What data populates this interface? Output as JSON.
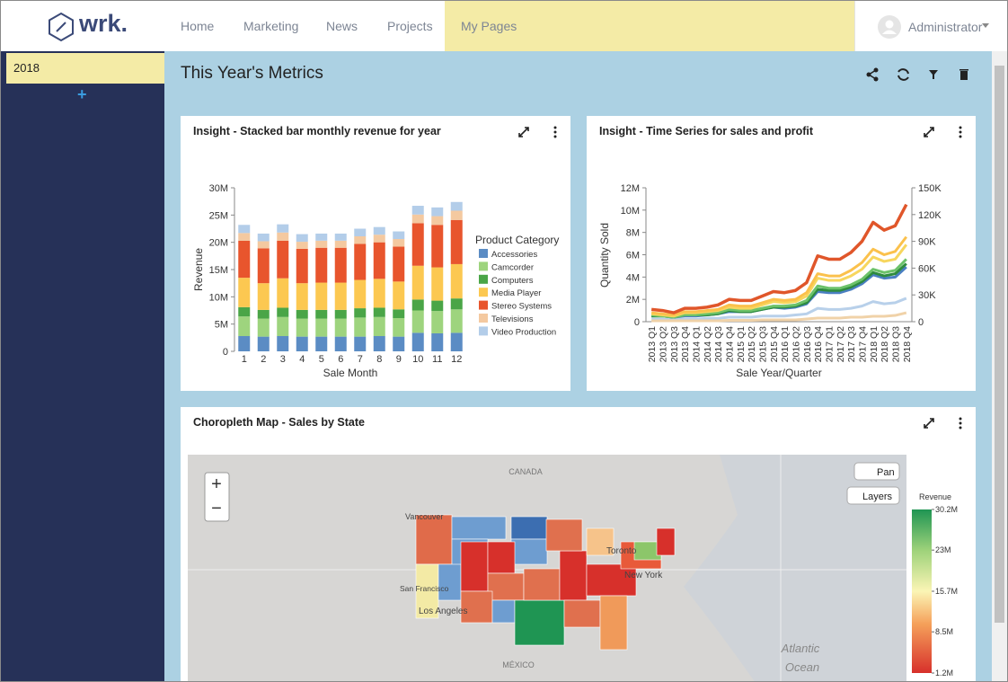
{
  "header": {
    "logo": "wrk.",
    "nav": [
      "Home",
      "Marketing",
      "News",
      "Projects",
      "My Pages"
    ],
    "active": 4,
    "user": "Administrator"
  },
  "sidebar": {
    "items": [
      "2018"
    ],
    "add": "+"
  },
  "page": {
    "title": "This Year's Metrics"
  },
  "chart_data": [
    {
      "type": "bar",
      "stacked": true,
      "title": "Insight - Stacked bar monthly revenue for year",
      "xlabel": "Sale Month",
      "ylabel": "Revenue",
      "legend_title": "Product Category",
      "legend": "right",
      "grid": false,
      "categories": [
        "1",
        "2",
        "3",
        "4",
        "5",
        "6",
        "7",
        "8",
        "9",
        "10",
        "11",
        "12"
      ],
      "ylim": [
        0,
        30000000
      ],
      "yticks": [
        0,
        {
          "value": 5000000,
          "label": "5M"
        },
        {
          "value": 10000000,
          "label": "10M"
        },
        {
          "value": 15000000,
          "label": "15M"
        },
        {
          "value": 20000000,
          "label": "20M"
        },
        {
          "value": 25000000,
          "label": "25M"
        },
        {
          "value": 30000000,
          "label": "30M"
        }
      ],
      "series": [
        {
          "name": "Accessories",
          "color": "#5b8cc4",
          "values": [
            2800000,
            2700000,
            2800000,
            2700000,
            2700000,
            2700000,
            2700000,
            2800000,
            2700000,
            3400000,
            3300000,
            3400000
          ]
        },
        {
          "name": "Camcorder",
          "color": "#9ed47e",
          "values": [
            3600000,
            3300000,
            3500000,
            3300000,
            3300000,
            3300000,
            3500000,
            3500000,
            3400000,
            4100000,
            4100000,
            4300000
          ]
        },
        {
          "name": "Computers",
          "color": "#4aa547",
          "values": [
            1700000,
            1600000,
            1700000,
            1600000,
            1600000,
            1600000,
            1700000,
            1700000,
            1600000,
            2000000,
            1900000,
            2000000
          ]
        },
        {
          "name": "Media Player",
          "color": "#fcc851",
          "values": [
            5400000,
            4900000,
            5400000,
            4900000,
            5000000,
            5000000,
            5200000,
            5300000,
            5100000,
            6200000,
            6100000,
            6300000
          ]
        },
        {
          "name": "Stereo Systems",
          "color": "#e8552d",
          "values": [
            6800000,
            6400000,
            6900000,
            6300000,
            6400000,
            6400000,
            6600000,
            6700000,
            6400000,
            7800000,
            7800000,
            8100000
          ]
        },
        {
          "name": "Televisions",
          "color": "#f4c9a0",
          "values": [
            1400000,
            1300000,
            1500000,
            1300000,
            1300000,
            1300000,
            1400000,
            1400000,
            1400000,
            1600000,
            1600000,
            1700000
          ]
        },
        {
          "name": "Video Production",
          "color": "#b3cde9",
          "values": [
            1500000,
            1400000,
            1500000,
            1400000,
            1300000,
            1300000,
            1400000,
            1400000,
            1400000,
            1600000,
            1600000,
            1600000
          ]
        }
      ]
    },
    {
      "type": "line",
      "title": "Insight - Time Series for sales and profit",
      "xlabel": "Sale Year/Quarter",
      "ylabel": "Quantity Sold",
      "grid": false,
      "categories": [
        "2013 Q1",
        "2013 Q2",
        "2013 Q3",
        "2013 Q4",
        "2014 Q1",
        "2014 Q2",
        "2014 Q3",
        "2014 Q4",
        "2015 Q1",
        "2015 Q2",
        "2015 Q3",
        "2015 Q4",
        "2016 Q1",
        "2016 Q2",
        "2016 Q3",
        "2016 Q4",
        "2017 Q1",
        "2017 Q2",
        "2017 Q3",
        "2017 Q4",
        "2018 Q1",
        "2018 Q2",
        "2018 Q3",
        "2018 Q4"
      ],
      "ylim": [
        0,
        12000000
      ],
      "yticks": [
        0,
        {
          "value": 2000000,
          "label": "2M"
        },
        {
          "value": 4000000,
          "label": "4M"
        },
        {
          "value": 6000000,
          "label": "6M"
        },
        {
          "value": 8000000,
          "label": "8M"
        },
        {
          "value": 10000000,
          "label": "10M"
        },
        {
          "value": 12000000,
          "label": "12M"
        }
      ],
      "y2lim": [
        0,
        150000
      ],
      "y2ticks": [
        0,
        {
          "value": 30000,
          "label": "30K"
        },
        {
          "value": 60000,
          "label": "60K"
        },
        {
          "value": 90000,
          "label": "90K"
        },
        {
          "value": 120000,
          "label": "120K"
        },
        {
          "value": 150000,
          "label": "150K"
        }
      ],
      "series": [
        {
          "color": "#b8d0ea",
          "values": [
            200000,
            200000,
            200000,
            200000,
            200000,
            300000,
            300000,
            400000,
            400000,
            400000,
            500000,
            500000,
            500000,
            600000,
            700000,
            1200000,
            1100000,
            1100000,
            1200000,
            1400000,
            1800000,
            1600000,
            1700000,
            2100000
          ]
        },
        {
          "color": "#4a7fc1",
          "values": [
            500000,
            500000,
            400000,
            500000,
            500000,
            600000,
            700000,
            900000,
            900000,
            900000,
            1100000,
            1300000,
            1200000,
            1300000,
            1600000,
            2700000,
            2600000,
            2600000,
            2900000,
            3400000,
            4200000,
            3900000,
            4000000,
            4900000
          ]
        },
        {
          "color": "#2e8b3e",
          "values": [
            500000,
            500000,
            400000,
            600000,
            600000,
            600000,
            700000,
            1000000,
            900000,
            900000,
            1100000,
            1300000,
            1300000,
            1400000,
            1700000,
            2900000,
            2800000,
            2800000,
            3100000,
            3600000,
            4400000,
            4100000,
            4300000,
            5200000
          ]
        },
        {
          "color": "#6cc26a",
          "values": [
            600000,
            500000,
            400000,
            600000,
            600000,
            700000,
            800000,
            1100000,
            1000000,
            1000000,
            1200000,
            1400000,
            1400000,
            1500000,
            1900000,
            3200000,
            3000000,
            3000000,
            3300000,
            3800000,
            4700000,
            4400000,
            4600000,
            5600000
          ]
        },
        {
          "color": "#f7d65e",
          "values": [
            700000,
            600000,
            500000,
            800000,
            800000,
            900000,
            1000000,
            1300000,
            1200000,
            1200000,
            1500000,
            1800000,
            1700000,
            1800000,
            2300000,
            3900000,
            3700000,
            3700000,
            4100000,
            4700000,
            5800000,
            5400000,
            5600000,
            6900000
          ]
        },
        {
          "color": "#fbc14c",
          "values": [
            800000,
            700000,
            600000,
            900000,
            900000,
            1000000,
            1100000,
            1500000,
            1400000,
            1400000,
            1700000,
            2000000,
            1900000,
            2000000,
            2600000,
            4300000,
            4100000,
            4100000,
            4600000,
            5300000,
            6500000,
            6000000,
            6300000,
            7600000
          ]
        },
        {
          "color": "#f0d2a8",
          "axis": "y2",
          "values": [
            1000,
            1000,
            1000,
            1000,
            1000,
            1000,
            1000,
            1500,
            1500,
            1500,
            2000,
            2000,
            2000,
            2000,
            3000,
            4000,
            4000,
            4000,
            5000,
            5000,
            6000,
            6000,
            7000,
            10000
          ]
        },
        {
          "color": "#e0562a",
          "values": [
            1100000,
            1000000,
            800000,
            1200000,
            1200000,
            1300000,
            1500000,
            2000000,
            1900000,
            1900000,
            2300000,
            2700000,
            2600000,
            2800000,
            3500000,
            5900000,
            5600000,
            5600000,
            6200000,
            7200000,
            8900000,
            8200000,
            8600000,
            10500000
          ]
        }
      ]
    }
  ],
  "map": {
    "title": "Choropleth Map - Sales by State",
    "labels": [
      "CANADA",
      "Vancouver",
      "Toronto",
      "New York",
      "San Francisco",
      "Los Angeles",
      "MÉXICO",
      "Atlantic",
      "Ocean"
    ],
    "controls": {
      "zoom_in": "+",
      "zoom_out": "−",
      "pan": "Pan",
      "layers": "Layers"
    },
    "legend": {
      "title": "Revenue",
      "lim": [
        1200000,
        30200000
      ],
      "ticks": [
        {
          "value": 30200000,
          "label": "30.2M"
        },
        {
          "value": 23000000,
          "label": "23M"
        },
        {
          "value": 15700000,
          "label": "15.7M"
        },
        {
          "value": 8500000,
          "label": "8.5M"
        },
        {
          "value": 1200000,
          "label": "1.2M"
        }
      ]
    }
  }
}
